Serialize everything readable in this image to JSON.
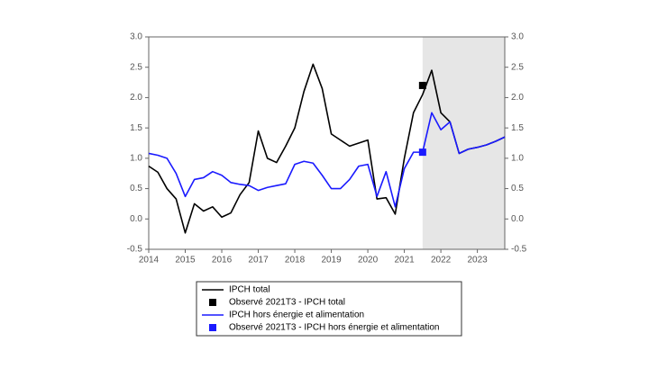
{
  "chart_data": {
    "type": "line",
    "x": [
      2014,
      2014.25,
      2014.5,
      2014.75,
      2015,
      2015.25,
      2015.5,
      2015.75,
      2016,
      2016.25,
      2016.5,
      2016.75,
      2017,
      2017.25,
      2017.5,
      2017.75,
      2018,
      2018.25,
      2018.5,
      2018.75,
      2019,
      2019.25,
      2019.5,
      2019.75,
      2020,
      2020.25,
      2020.5,
      2020.75,
      2021,
      2021.25,
      2021.5,
      2021.75,
      2022,
      2022.25,
      2022.5,
      2022.75,
      2023,
      2023.25,
      2023.5,
      2023.75
    ],
    "xlim": [
      2014,
      2023.75
    ],
    "xticks": [
      2014,
      2015,
      2016,
      2017,
      2018,
      2019,
      2020,
      2021,
      2022,
      2023
    ],
    "ylim": [
      -0.5,
      3.0
    ],
    "yticks": [
      {
        "value": -0.5,
        "label": "-0.5"
      },
      {
        "value": 0,
        "label": "0.0"
      },
      {
        "value": 0.5,
        "label": "0.5"
      },
      {
        "value": 1,
        "label": "1.0"
      },
      {
        "value": 1.5,
        "label": "1.5"
      },
      {
        "value": 2,
        "label": "2.0"
      },
      {
        "value": 2.5,
        "label": "2.5"
      },
      {
        "value": 3,
        "label": "3.0"
      }
    ],
    "y2lim": [
      -0.5,
      3.0
    ],
    "y2ticks": [
      {
        "value": -0.5,
        "label": "-0.5"
      },
      {
        "value": 0,
        "label": "0.0"
      },
      {
        "value": 0.5,
        "label": "0.5"
      },
      {
        "value": 1,
        "label": "1.0"
      },
      {
        "value": 1.5,
        "label": "1.5"
      },
      {
        "value": 2,
        "label": "2.0"
      },
      {
        "value": 2.5,
        "label": "2.5"
      },
      {
        "value": 3,
        "label": "3.0"
      }
    ],
    "shaded_x": [
      2021.5,
      2023.75
    ],
    "shade_color": "#e6e6e6",
    "series": [
      {
        "name": "IPCH total",
        "color": "#000000",
        "marker": "line",
        "values": [
          0.87,
          0.77,
          0.5,
          0.33,
          -0.23,
          0.25,
          0.13,
          0.2,
          0.03,
          0.1,
          0.4,
          0.6,
          1.45,
          1.0,
          0.93,
          1.2,
          1.5,
          2.1,
          2.55,
          2.15,
          1.4,
          1.3,
          1.2,
          1.25,
          1.3,
          0.33,
          0.35,
          0.08,
          1.0,
          1.75,
          2.05,
          2.45,
          1.75,
          1.6,
          1.08,
          1.15,
          1.18,
          1.22,
          1.28,
          1.35
        ]
      },
      {
        "name": "Observé 2021T3 - IPCH total",
        "color": "#000000",
        "marker": "square",
        "x": [
          2021.5
        ],
        "values": [
          2.2
        ]
      },
      {
        "name": "IPCH hors énergie et alimentation",
        "color": "#1a1aff",
        "marker": "line",
        "values": [
          1.08,
          1.05,
          1.0,
          0.75,
          0.37,
          0.65,
          0.68,
          0.78,
          0.72,
          0.6,
          0.57,
          0.55,
          0.47,
          0.52,
          0.55,
          0.58,
          0.9,
          0.95,
          0.92,
          0.72,
          0.5,
          0.5,
          0.65,
          0.87,
          0.9,
          0.37,
          0.78,
          0.2,
          0.83,
          1.1,
          1.1,
          1.75,
          1.47,
          1.6,
          1.08,
          1.15,
          1.18,
          1.22,
          1.28,
          1.35
        ]
      },
      {
        "name": "Observé 2021T3 - IPCH hors énergie et alimentation",
        "color": "#1a1aff",
        "marker": "square",
        "x": [
          2021.5
        ],
        "values": [
          1.1
        ]
      }
    ]
  }
}
